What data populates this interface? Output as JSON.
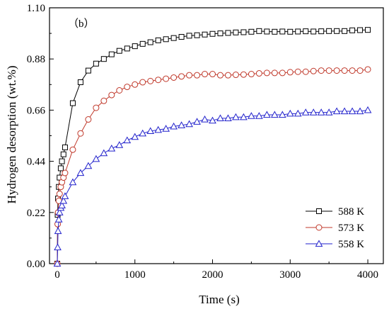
{
  "chart_data": {
    "type": "line",
    "title": "",
    "panel_label": "（b）",
    "xlabel": "Time (s)",
    "ylabel": "Hydrogen desorption (wt.%)",
    "xlim": [
      -100,
      4200
    ],
    "ylim": [
      0,
      1.1
    ],
    "xticks": [
      0,
      1000,
      2000,
      3000,
      4000
    ],
    "xtick_labels": [
      "0",
      "1000",
      "2000",
      "3000",
      "4000"
    ],
    "yticks": [
      0.0,
      0.22,
      0.44,
      0.66,
      0.88,
      1.1
    ],
    "ytick_labels": [
      "0.00",
      "0.22",
      "0.44",
      "0.66",
      "0.88",
      "1.10"
    ],
    "grid": false,
    "legend_position": "bottom-right",
    "series": [
      {
        "name": "588 K",
        "marker": "square",
        "color": "#000000",
        "x": [
          0,
          5,
          10,
          20,
          30,
          45,
          60,
          80,
          100,
          200,
          300,
          400,
          500,
          600,
          700,
          800,
          900,
          1000,
          1100,
          1200,
          1300,
          1400,
          1500,
          1600,
          1700,
          1800,
          1900,
          2000,
          2100,
          2200,
          2300,
          2400,
          2500,
          2600,
          2700,
          2800,
          2900,
          3000,
          3100,
          3200,
          3300,
          3400,
          3500,
          3600,
          3700,
          3800,
          3900,
          4000
        ],
        "y": [
          0.0,
          0.21,
          0.28,
          0.33,
          0.37,
          0.41,
          0.44,
          0.47,
          0.5,
          0.69,
          0.78,
          0.83,
          0.86,
          0.88,
          0.9,
          0.915,
          0.925,
          0.935,
          0.945,
          0.952,
          0.96,
          0.965,
          0.97,
          0.975,
          0.98,
          0.982,
          0.985,
          0.988,
          0.99,
          0.992,
          0.994,
          0.995,
          0.997,
          1.0,
          0.998,
          0.997,
          0.998,
          0.997,
          0.998,
          0.999,
          0.998,
          0.999,
          1.0,
          1.0,
          1.0,
          1.003,
          1.004,
          1.005
        ]
      },
      {
        "name": "573 K",
        "marker": "circle",
        "color": "#c0392b",
        "x": [
          0,
          5,
          10,
          20,
          30,
          45,
          60,
          80,
          100,
          200,
          300,
          400,
          500,
          600,
          700,
          800,
          900,
          1000,
          1100,
          1200,
          1300,
          1400,
          1500,
          1600,
          1700,
          1800,
          1900,
          2000,
          2100,
          2200,
          2300,
          2400,
          2500,
          2600,
          2700,
          2800,
          2900,
          3000,
          3100,
          3200,
          3300,
          3400,
          3500,
          3600,
          3700,
          3800,
          3900,
          4000
        ],
        "y": [
          0.0,
          0.17,
          0.22,
          0.27,
          0.3,
          0.33,
          0.35,
          0.37,
          0.39,
          0.49,
          0.56,
          0.62,
          0.67,
          0.7,
          0.725,
          0.745,
          0.76,
          0.77,
          0.78,
          0.785,
          0.79,
          0.795,
          0.8,
          0.805,
          0.81,
          0.81,
          0.815,
          0.815,
          0.81,
          0.81,
          0.812,
          0.813,
          0.815,
          0.818,
          0.82,
          0.82,
          0.82,
          0.823,
          0.825,
          0.825,
          0.828,
          0.83,
          0.83,
          0.83,
          0.83,
          0.83,
          0.83,
          0.835
        ]
      },
      {
        "name": "558 K",
        "marker": "triangle",
        "color": "#2222cc",
        "x": [
          0,
          5,
          10,
          20,
          30,
          45,
          60,
          80,
          100,
          200,
          300,
          400,
          500,
          600,
          700,
          800,
          900,
          1000,
          1100,
          1200,
          1300,
          1400,
          1500,
          1600,
          1700,
          1800,
          1900,
          2000,
          2100,
          2200,
          2300,
          2400,
          2500,
          2600,
          2700,
          2800,
          2900,
          3000,
          3100,
          3200,
          3300,
          3400,
          3500,
          3600,
          3700,
          3800,
          3900,
          4000
        ],
        "y": [
          0.0,
          0.07,
          0.14,
          0.19,
          0.22,
          0.24,
          0.25,
          0.27,
          0.29,
          0.35,
          0.39,
          0.42,
          0.45,
          0.475,
          0.495,
          0.51,
          0.53,
          0.545,
          0.56,
          0.57,
          0.575,
          0.58,
          0.59,
          0.595,
          0.6,
          0.61,
          0.62,
          0.615,
          0.625,
          0.625,
          0.63,
          0.63,
          0.635,
          0.635,
          0.64,
          0.64,
          0.64,
          0.645,
          0.645,
          0.65,
          0.65,
          0.65,
          0.65,
          0.655,
          0.655,
          0.655,
          0.655,
          0.66
        ]
      }
    ]
  }
}
